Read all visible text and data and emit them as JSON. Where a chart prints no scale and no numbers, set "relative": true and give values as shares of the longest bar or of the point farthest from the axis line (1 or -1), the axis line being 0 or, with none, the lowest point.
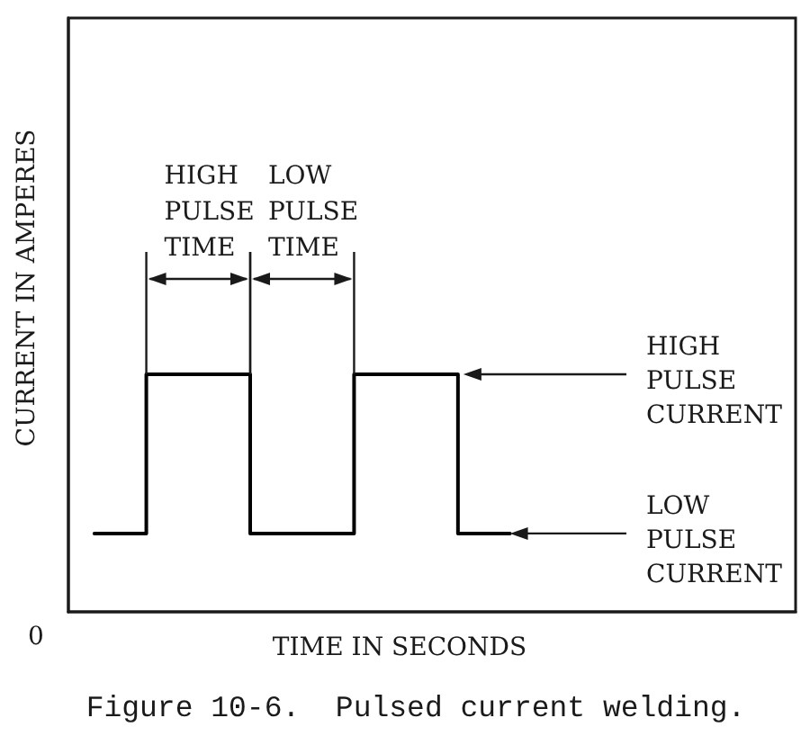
{
  "chart_data": {
    "type": "step",
    "relative": true,
    "xlabel": "TIME IN SECONDS",
    "ylabel": "CURRENT IN AMPERES",
    "color": "#000000",
    "categories": [
      null,
      null,
      null,
      null,
      null,
      null,
      null,
      null,
      null,
      null,
      null,
      null,
      null,
      null
    ],
    "values": [
      0.33,
      0.33,
      1,
      1,
      0.33,
      0.33,
      1,
      1,
      0.33,
      null,
      null,
      null,
      null,
      null
    ],
    "annotations": [
      "HIGH PULSE TIME",
      "LOW PULSE TIME",
      "HIGH PULSE CURRENT",
      "LOW PULSE CURRENT",
      "0",
      "Figure 10-6.  Pulsed current welding."
    ]
  }
}
